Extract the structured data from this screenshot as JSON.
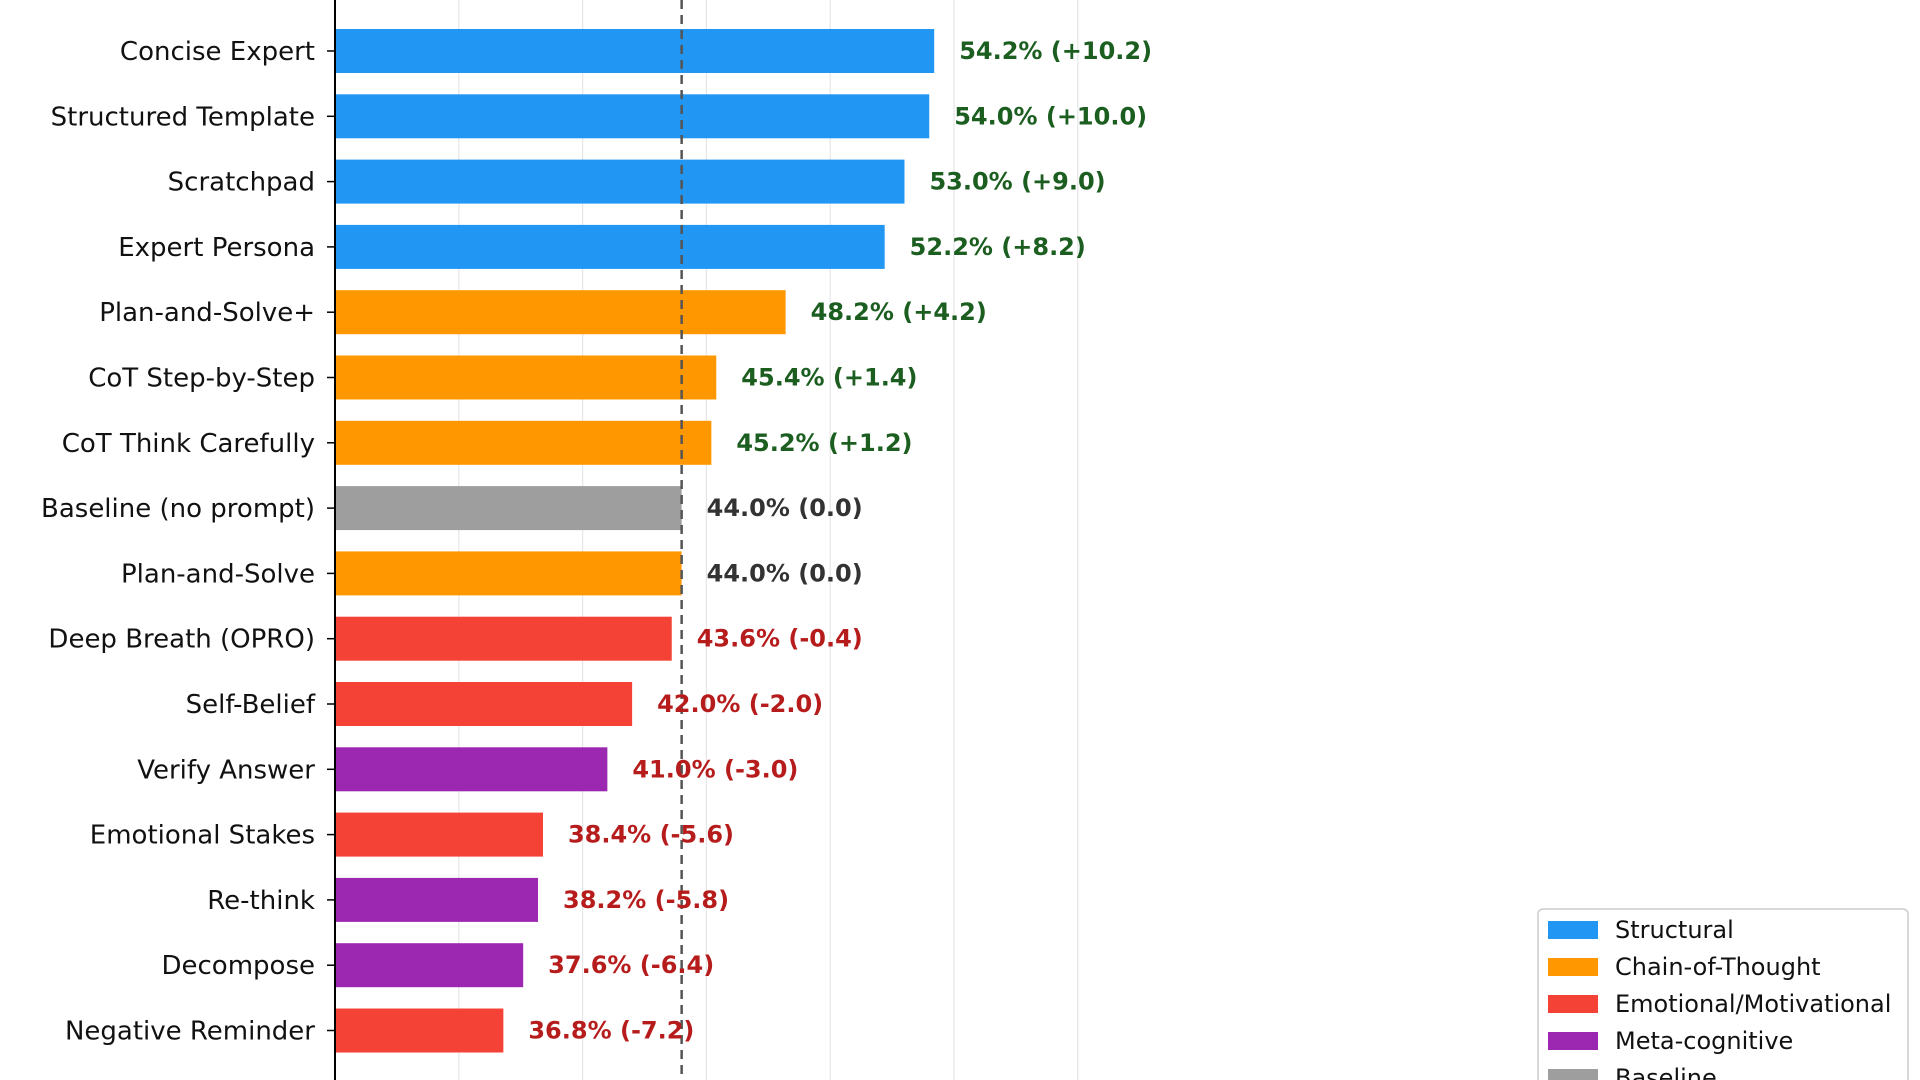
{
  "chart_data": {
    "type": "bar",
    "orientation": "horizontal",
    "title": "",
    "xlabel": "",
    "ylabel": "",
    "xlim": [
      30,
      60
    ],
    "grid": "vertical",
    "baseline_value": 44.0,
    "categories": [
      "Concise Expert",
      "Structured Template",
      "Scratchpad",
      "Expert Persona",
      "Plan-and-Solve+",
      "CoT Step-by-Step",
      "CoT Think Carefully",
      "Baseline (no prompt)",
      "Plan-and-Solve",
      "Deep Breath (OPRO)",
      "Self-Belief",
      "Verify Answer",
      "Emotional Stakes",
      "Re-think",
      "Decompose",
      "Negative Reminder"
    ],
    "values": [
      54.2,
      54.0,
      53.0,
      52.2,
      48.2,
      45.4,
      45.2,
      44.0,
      44.0,
      43.6,
      42.0,
      41.0,
      38.4,
      38.2,
      37.6,
      36.8
    ],
    "groups": [
      "Structural",
      "Structural",
      "Structural",
      "Structural",
      "Chain-of-Thought",
      "Chain-of-Thought",
      "Chain-of-Thought",
      "Baseline",
      "Chain-of-Thought",
      "Emotional/Motivational",
      "Emotional/Motivational",
      "Meta-cognitive",
      "Emotional/Motivational",
      "Meta-cognitive",
      "Meta-cognitive",
      "Emotional/Motivational"
    ],
    "data_labels": [
      "54.2% (+10.2)",
      "54.0% (+10.0)",
      "53.0% (+9.0)",
      "52.2% (+8.2)",
      "48.2% (+4.2)",
      "45.4% (+1.4)",
      "45.2% (+1.2)",
      "44.0% (0.0)",
      "44.0% (0.0)",
      "43.6% (-0.4)",
      "42.0% (-2.0)",
      "41.0% (-3.0)",
      "38.4% (-5.6)",
      "38.2% (-5.8)",
      "37.6% (-6.4)",
      "36.8% (-7.2)"
    ],
    "legend": {
      "placement": "bottom-right",
      "entries": [
        {
          "name": "Structural",
          "color": "#2196f3"
        },
        {
          "name": "Chain-of-Thought",
          "color": "#ff9800"
        },
        {
          "name": "Emotional/Motivational",
          "color": "#f44336"
        },
        {
          "name": "Meta-cognitive",
          "color": "#9c27b0"
        },
        {
          "name": "Baseline",
          "color": "#9e9e9e"
        }
      ]
    },
    "label_colors": {
      "positive": "#1b5e20",
      "neutral": "#333333",
      "negative": "#b71c1c"
    }
  }
}
